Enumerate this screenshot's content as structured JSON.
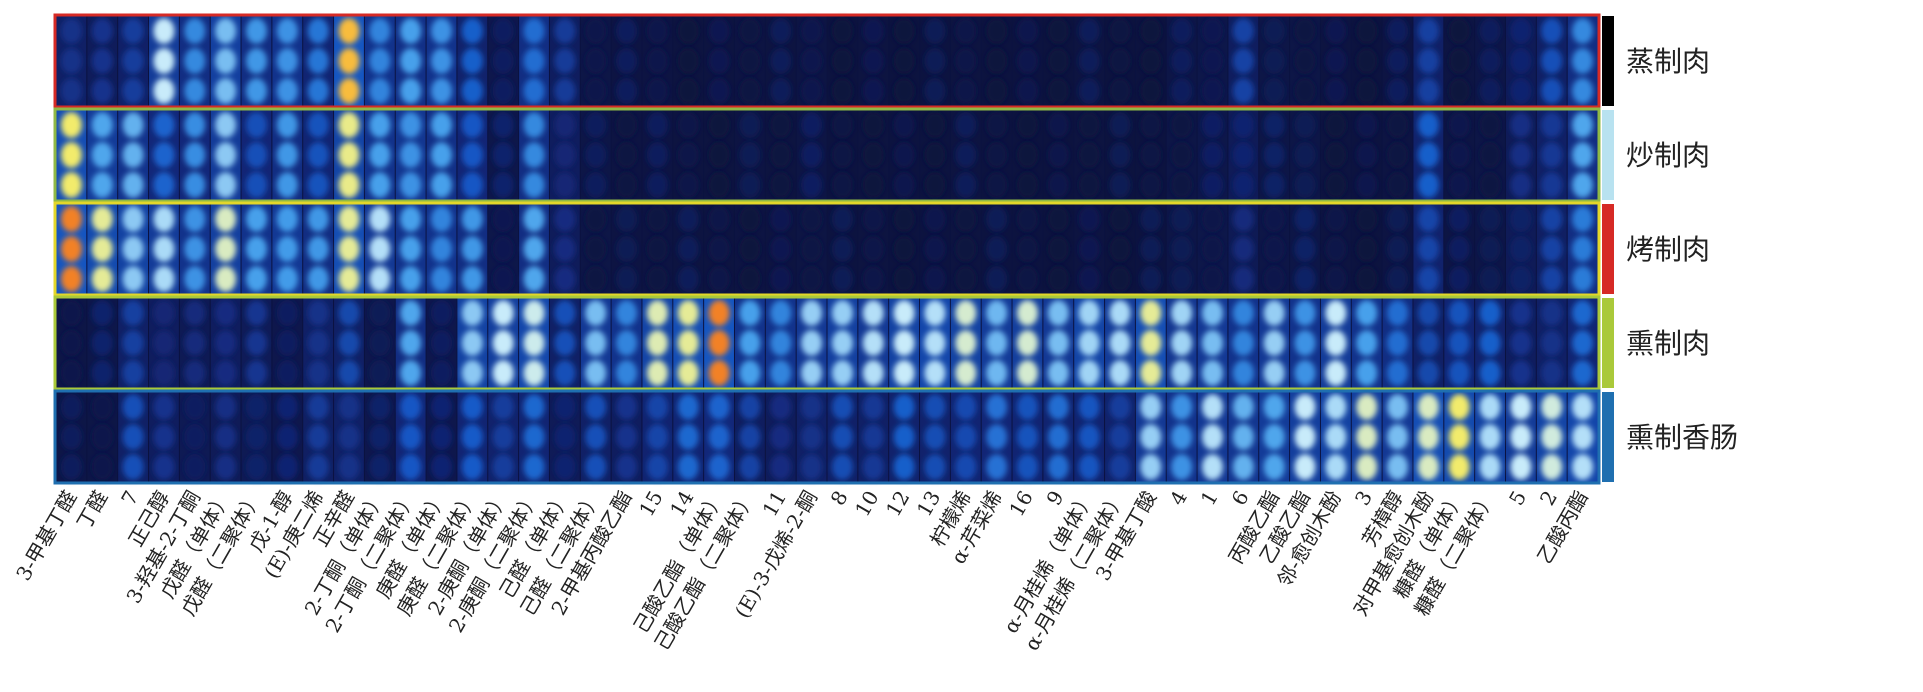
{
  "chart_data": {
    "type": "heatmap",
    "title": "",
    "xlabel": "",
    "ylabel": "",
    "rows": [
      "蒸制肉",
      "炒制肉",
      "烤制肉",
      "熏制肉",
      "熏制香肠"
    ],
    "row_colors": [
      "#d62a25",
      "#8fb946",
      "#e3d72a",
      "#aac93a",
      "#1f6fb0"
    ],
    "row_side_colors": [
      "#000000",
      "#b8e2f0",
      "#d62a25",
      "#aac93a",
      "#1f6fb0"
    ],
    "columns": [
      "3-甲基丁醛",
      "丁醛",
      "7",
      "正己醇",
      "3-羟基-2-丁酮",
      "戊醛（单体）",
      "戊醛（二聚体）",
      "戊-1-醇",
      "(E)-庚二烯",
      "正辛醛",
      "2-丁酮（单体）",
      "2-丁酮（二聚体）",
      "庚醛（单体）",
      "庚醛（二聚体）",
      "2-庚酮（单体）",
      "2-庚酮（二聚体）",
      "己醛（单体）",
      "己醛（二聚体）",
      "2-甲基丙酸乙酯",
      "15",
      "14",
      "己酸乙酯（单体）",
      "己酸乙酯（二聚体）",
      "11",
      "(E)-3-戊烯-2-酮",
      "8",
      "10",
      "12",
      "13",
      "柠檬烯",
      "α-芹菜烯",
      "16",
      "9",
      "α-月桂烯（单体）",
      "α-月桂烯（二聚体）",
      "3-甲基丁酸",
      "4",
      "1",
      "6",
      "丙酸乙酯",
      "乙酸乙酯",
      "邻-愈创木酚",
      "3",
      "芳樟醇",
      "对甲基愈创木酚",
      "糠醛（单体）",
      "糠醛（二聚体）",
      "5",
      "2",
      "乙酸丙酯"
    ],
    "scale": "intensity 0–1 (dark navy → blue → light blue → yellow → red)",
    "values": [
      [
        0.3,
        0.22,
        0.32,
        0.62,
        0.5,
        0.66,
        0.5,
        0.55,
        0.4,
        0.85,
        0.55,
        0.52,
        0.55,
        0.35,
        0.12,
        0.5,
        0.25,
        0.08,
        0.05,
        0.05,
        0.04,
        0.04,
        0.05,
        0.04,
        0.06,
        0.03,
        0.04,
        0.03,
        0.03,
        0.04,
        0.03,
        0.03,
        0.02,
        0.04,
        0.02,
        0.03,
        0.08,
        0.1,
        0.25,
        0.08,
        0.08,
        0.04,
        0.03,
        0.05,
        0.3,
        0.06,
        0.08,
        0.2,
        0.3,
        0.5
      ],
      [
        0.78,
        0.62,
        0.55,
        0.45,
        0.45,
        0.62,
        0.42,
        0.5,
        0.4,
        0.7,
        0.55,
        0.58,
        0.52,
        0.42,
        0.1,
        0.5,
        0.25,
        0.08,
        0.05,
        0.05,
        0.04,
        0.04,
        0.05,
        0.04,
        0.06,
        0.03,
        0.04,
        0.03,
        0.03,
        0.04,
        0.03,
        0.03,
        0.02,
        0.04,
        0.02,
        0.03,
        0.08,
        0.1,
        0.2,
        0.08,
        0.08,
        0.04,
        0.03,
        0.05,
        0.35,
        0.06,
        0.08,
        0.2,
        0.3,
        0.5
      ],
      [
        0.85,
        0.75,
        0.68,
        0.62,
        0.55,
        0.66,
        0.55,
        0.6,
        0.5,
        0.78,
        0.6,
        0.55,
        0.55,
        0.5,
        0.1,
        0.5,
        0.22,
        0.08,
        0.05,
        0.05,
        0.04,
        0.04,
        0.05,
        0.04,
        0.06,
        0.03,
        0.04,
        0.03,
        0.03,
        0.04,
        0.03,
        0.03,
        0.02,
        0.04,
        0.02,
        0.03,
        0.08,
        0.1,
        0.18,
        0.08,
        0.08,
        0.04,
        0.03,
        0.05,
        0.35,
        0.06,
        0.08,
        0.2,
        0.28,
        0.5
      ],
      [
        0.08,
        0.1,
        0.3,
        0.25,
        0.18,
        0.25,
        0.2,
        0.12,
        0.3,
        0.3,
        0.12,
        0.5,
        0.12,
        0.68,
        0.65,
        0.72,
        0.3,
        0.6,
        0.55,
        0.7,
        0.78,
        0.85,
        0.55,
        0.55,
        0.6,
        0.66,
        0.6,
        0.68,
        0.72,
        0.68,
        0.62,
        0.65,
        0.6,
        0.7,
        0.62,
        0.78,
        0.58,
        0.6,
        0.55,
        0.6,
        0.55,
        0.62,
        0.55,
        0.5,
        0.3,
        0.4,
        0.35,
        0.25,
        0.3,
        0.4
      ],
      [
        0.08,
        0.08,
        0.3,
        0.25,
        0.18,
        0.2,
        0.18,
        0.12,
        0.28,
        0.3,
        0.12,
        0.42,
        0.12,
        0.4,
        0.35,
        0.4,
        0.2,
        0.3,
        0.25,
        0.38,
        0.4,
        0.45,
        0.25,
        0.22,
        0.3,
        0.32,
        0.3,
        0.35,
        0.35,
        0.4,
        0.42,
        0.4,
        0.38,
        0.38,
        0.35,
        0.6,
        0.55,
        0.6,
        0.58,
        0.62,
        0.65,
        0.68,
        0.66,
        0.6,
        0.78,
        0.75,
        0.68,
        0.62,
        0.7,
        0.72
      ]
    ]
  }
}
